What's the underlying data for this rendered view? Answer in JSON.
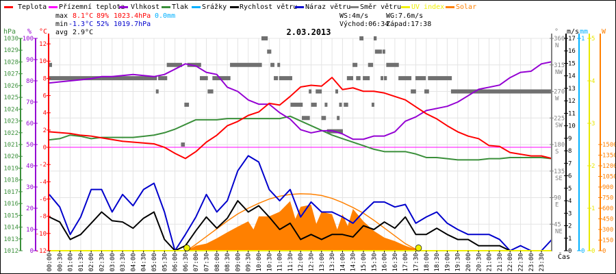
{
  "legend": [
    {
      "label": "Teplota",
      "color": "#ff0000"
    },
    {
      "label": "Přízemní teplota",
      "color": "#ff00ff"
    },
    {
      "label": "Vlhkost",
      "color": "#9400d3"
    },
    {
      "label": "Tlak",
      "color": "#3a8f3a"
    },
    {
      "label": "Srážky",
      "color": "#00b0ff"
    },
    {
      "label": "Rychlost větru",
      "color": "#000000"
    },
    {
      "label": "Náraz větru",
      "color": "#0000cc"
    },
    {
      "label": "Směr větru",
      "color": "#808080"
    },
    {
      "label": "UV index",
      "color": "#f0f000"
    },
    {
      "label": "Solar",
      "color": "#ff8000"
    }
  ],
  "stats": {
    "max_label": "max",
    "max_temp": "8.1°C",
    "max_hum": "89%",
    "max_press": "1023.4hPa",
    "max_rain": "0.0mm",
    "min_label": "min",
    "min_temp": "-1.3°C",
    "min_hum": "52%",
    "min_press": "1019.7hPa",
    "avg_label": "avg",
    "avg_temp": "2.9°C",
    "ws": "WS:4m/s",
    "wg": "WG:7.6m/s",
    "sunrise": "Východ:06:34",
    "sunset": "Západ:17:38"
  },
  "units": {
    "hpa": "hPa",
    "pct": "%",
    "degc": "°C",
    "deg": "°",
    "ms": "m/s",
    "mm": "mm",
    "w": "W",
    "time": "Čas"
  },
  "chart_data": {
    "type": "line",
    "title": "2.03.2013",
    "x_hours_step": 0.5,
    "time_labels": [
      "00:00",
      "00:30",
      "01:00",
      "01:30",
      "02:00",
      "02:30",
      "03:00",
      "03:30",
      "04:00",
      "04:30",
      "05:00",
      "05:30",
      "06:00",
      "06:30",
      "07:00",
      "07:30",
      "08:00",
      "08:30",
      "09:00",
      "09:30",
      "10:00",
      "10:30",
      "11:00",
      "11:30",
      "12:00",
      "12:30",
      "13:00",
      "13:30",
      "14:00",
      "14:30",
      "15:00",
      "15:30",
      "16:00",
      "16:30",
      "17:00",
      "17:30",
      "18:00",
      "18:30",
      "19:00",
      "19:30",
      "20:00",
      "20:30",
      "21:00",
      "21:30",
      "22:00",
      "22:30",
      "23:00",
      "23:30"
    ],
    "axes": {
      "pressure": {
        "unit": "hPa",
        "range": [
          1012,
          1030
        ],
        "ticks": [
          "1012",
          "1013",
          "1014",
          "1015",
          "1016",
          "1017",
          "1018",
          "1019",
          "1020",
          "1021",
          "1022",
          "1023",
          "1024",
          "1025",
          "1026",
          "1027",
          "1028",
          "1029",
          "1030"
        ]
      },
      "humidity": {
        "unit": "%",
        "range": [
          0,
          100
        ],
        "ticks": [
          "0",
          "10",
          "20",
          "30",
          "40",
          "50",
          "60",
          "70",
          "80",
          "90",
          "100"
        ]
      },
      "temperature": {
        "unit": "°C",
        "range": [
          -12,
          12
        ],
        "ticks": [
          "-12",
          "-10",
          "-8",
          "-6",
          "-4",
          "-2",
          "0",
          "2",
          "4",
          "6",
          "8",
          "10",
          "12"
        ]
      },
      "direction": {
        "unit": "°",
        "range": [
          0,
          360
        ],
        "ticks": [
          "45",
          "90",
          "135",
          "180",
          "225",
          "270",
          "315",
          "360"
        ],
        "compass": [
          "NE",
          "E",
          "SE",
          "S",
          "SW",
          "W",
          "NW",
          "N"
        ]
      },
      "wind": {
        "unit": "m/s",
        "range": [
          0,
          17
        ],
        "ticks": [
          "0",
          "1",
          "2",
          "3",
          "4",
          "5",
          "6",
          "7",
          "8",
          "9",
          "10",
          "11",
          "12",
          "13",
          "14",
          "15",
          "16",
          "17"
        ]
      },
      "rain": {
        "unit": "mm",
        "range": [
          0,
          1
        ],
        "ticks": [
          "0",
          "1"
        ]
      },
      "uv": {
        "range": [
          0,
          5
        ],
        "ticks": [
          "0",
          "1",
          "2",
          "3",
          "4",
          "5"
        ]
      },
      "solar": {
        "unit": "W",
        "range": [
          0,
          1500
        ],
        "ticks": [
          "0",
          "150",
          "300",
          "450",
          "600",
          "750",
          "900",
          "1050",
          "1200",
          "1350",
          "1500"
        ]
      }
    },
    "series": [
      {
        "name": "Teplota",
        "axis": "temperature",
        "values": [
          1.8,
          1.7,
          1.6,
          1.4,
          1.3,
          1.1,
          0.9,
          0.7,
          0.6,
          0.5,
          0.4,
          0.0,
          -0.7,
          -1.3,
          -0.5,
          0.6,
          1.4,
          2.5,
          3.0,
          3.7,
          4.1,
          5.1,
          4.9,
          5.9,
          7.0,
          7.2,
          7.1,
          8.1,
          6.7,
          6.9,
          6.5,
          6.5,
          6.3,
          5.9,
          5.5,
          4.7,
          3.9,
          3.3,
          2.5,
          1.8,
          1.3,
          1.0,
          0.2,
          0.1,
          -0.6,
          -0.8,
          -1.0,
          -1.0,
          -1.3
        ]
      },
      {
        "name": "Přízemní teplota",
        "axis": "temperature",
        "values": [
          0,
          0,
          0,
          0,
          0,
          0,
          0,
          0,
          0,
          0,
          0,
          0,
          0,
          0,
          0,
          0,
          0,
          0,
          0,
          0,
          0,
          0,
          0,
          0,
          0,
          0,
          0,
          0,
          0,
          0,
          0,
          0,
          0,
          0,
          0,
          0,
          0,
          0,
          0,
          0,
          0,
          0,
          0,
          0,
          0,
          0,
          0,
          0,
          0
        ]
      },
      {
        "name": "Vlhkost",
        "axis": "humidity",
        "values": [
          79,
          79.5,
          80,
          80.5,
          81,
          82,
          82,
          82.5,
          83,
          82.5,
          82,
          83,
          85.5,
          88,
          87,
          84,
          83,
          77,
          75,
          71,
          69,
          69,
          65,
          62,
          57,
          55.5,
          56.5,
          56.5,
          55,
          52.5,
          52.5,
          54,
          54,
          56,
          61,
          63,
          66,
          67,
          68,
          70,
          73,
          76,
          77,
          78,
          81.5,
          84,
          84.5,
          88,
          89
        ]
      },
      {
        "name": "Tlak",
        "axis": "pressure",
        "values": [
          1021.4,
          1021.5,
          1021.8,
          1021.7,
          1021.5,
          1021.6,
          1021.6,
          1021.6,
          1021.6,
          1021.7,
          1021.8,
          1022.0,
          1022.3,
          1022.7,
          1023.1,
          1023.1,
          1023.1,
          1023.2,
          1023.2,
          1023.2,
          1023.2,
          1023.2,
          1023.2,
          1023.4,
          1023.0,
          1022.6,
          1022.2,
          1021.8,
          1021.5,
          1021.2,
          1020.9,
          1020.6,
          1020.4,
          1020.4,
          1020.4,
          1020.2,
          1019.9,
          1019.9,
          1019.8,
          1019.7,
          1019.7,
          1019.7,
          1019.8,
          1019.8,
          1019.9,
          1019.9,
          1019.9,
          1019.9,
          1019.8
        ]
      },
      {
        "name": "Náraz větru",
        "axis": "wind",
        "values": [
          4.5,
          3.5,
          1.3,
          2.7,
          4.9,
          4.9,
          3.1,
          4.5,
          3.6,
          4.9,
          5.4,
          3.1,
          0,
          1.3,
          2.7,
          4.5,
          3.1,
          4.0,
          6.4,
          7.6,
          7.1,
          4.9,
          4.0,
          4.9,
          2.7,
          3.9,
          3.1,
          3.1,
          2.7,
          2.2,
          3.1,
          3.9,
          3.9,
          3.5,
          3.7,
          2.2,
          2.7,
          3.1,
          2.2,
          1.7,
          1.3,
          1.3,
          1.3,
          0.9,
          0,
          0.4,
          0,
          0,
          0.9
        ]
      },
      {
        "name": "Rychlost větru",
        "axis": "wind",
        "values": [
          2.7,
          2.3,
          0.9,
          1.3,
          2.2,
          3.1,
          2.4,
          2.3,
          1.8,
          2.6,
          3.1,
          0.9,
          0,
          0.4,
          1.6,
          2.7,
          1.8,
          2.6,
          4.0,
          3.1,
          3.6,
          2.7,
          1.7,
          2.2,
          0.9,
          1.3,
          0.9,
          1.3,
          1.3,
          1.1,
          2.0,
          1.7,
          2.3,
          1.8,
          2.7,
          1.3,
          1.3,
          1.8,
          1.3,
          0.9,
          0.9,
          0.4,
          0.4,
          0.4,
          0,
          0,
          0,
          0,
          0
        ]
      }
    ],
    "solar": [
      [
        6.57,
        0
      ],
      [
        7,
        70
      ],
      [
        7.5,
        100
      ],
      [
        8,
        175
      ],
      [
        8.5,
        260
      ],
      [
        9,
        340
      ],
      [
        9.5,
        415
      ],
      [
        9.75,
        300
      ],
      [
        10,
        485
      ],
      [
        10.5,
        485
      ],
      [
        11,
        550
      ],
      [
        11.5,
        700
      ],
      [
        11.75,
        450
      ],
      [
        12,
        620
      ],
      [
        12.5,
        650
      ],
      [
        12.75,
        380
      ],
      [
        13,
        550
      ],
      [
        13.5,
        515
      ],
      [
        13.75,
        300
      ],
      [
        14,
        515
      ],
      [
        14.25,
        350
      ],
      [
        14.5,
        590
      ],
      [
        15,
        415
      ],
      [
        15.5,
        280
      ],
      [
        16,
        185
      ],
      [
        16.5,
        135
      ],
      [
        17,
        70
      ],
      [
        17.5,
        20
      ],
      [
        17.63,
        0
      ]
    ],
    "solar_clear_sky": [
      [
        6.57,
        0
      ],
      [
        7,
        90
      ],
      [
        7.5,
        200
      ],
      [
        8,
        310
      ],
      [
        8.5,
        420
      ],
      [
        9,
        520
      ],
      [
        9.5,
        600
      ],
      [
        10,
        670
      ],
      [
        10.5,
        730
      ],
      [
        11,
        770
      ],
      [
        11.5,
        795
      ],
      [
        12,
        805
      ],
      [
        12.5,
        800
      ],
      [
        13,
        780
      ],
      [
        13.5,
        740
      ],
      [
        14,
        680
      ],
      [
        14.5,
        610
      ],
      [
        15,
        530
      ],
      [
        15.5,
        430
      ],
      [
        16,
        320
      ],
      [
        16.5,
        210
      ],
      [
        17,
        100
      ],
      [
        17.5,
        20
      ],
      [
        17.63,
        0
      ]
    ],
    "uv_points": [
      [
        6.57,
        0
      ],
      [
        17.63,
        0
      ]
    ],
    "direction_segments": [
      [
        0,
        5.14,
        292.5
      ],
      [
        0,
        0.06,
        315
      ],
      [
        5.2,
        5.63,
        292.5
      ],
      [
        5.09,
        5.22,
        270
      ],
      [
        5.61,
        6.34,
        315
      ],
      [
        6.29,
        6.47,
        180
      ],
      [
        6.45,
        6.67,
        247.5
      ],
      [
        6.59,
        7.25,
        315
      ],
      [
        7.19,
        7.57,
        292.5
      ],
      [
        7.56,
        7.83,
        270
      ],
      [
        7.79,
        8.65,
        292.5
      ],
      [
        8.63,
        10.15,
        315
      ],
      [
        10.13,
        10.43,
        360
      ],
      [
        10.4,
        10.6,
        337.5
      ],
      [
        10.56,
        10.75,
        315
      ],
      [
        10.89,
        11.0,
        315
      ],
      [
        10.72,
        10.92,
        292.5
      ],
      [
        10.97,
        11.6,
        292.5
      ],
      [
        11.52,
        12.1,
        247.5
      ],
      [
        12.06,
        12.44,
        225
      ],
      [
        12.39,
        12.52,
        270
      ],
      [
        12.5,
        12.77,
        247.5
      ],
      [
        12.72,
        13.01,
        270
      ],
      [
        12.99,
        13.21,
        225
      ],
      [
        13.15,
        13.26,
        247.5
      ],
      [
        13.26,
        14.02,
        202.5
      ],
      [
        13.66,
        13.78,
        270
      ],
      [
        13.73,
        13.86,
        225
      ],
      [
        13.84,
        13.97,
        247.5
      ],
      [
        14.06,
        14.27,
        247.5
      ],
      [
        14.21,
        14.51,
        292.5
      ],
      [
        14.48,
        14.71,
        315
      ],
      [
        14.65,
        14.86,
        292.5
      ],
      [
        14.81,
        15.0,
        360
      ],
      [
        14.97,
        15.3,
        292.5
      ],
      [
        15.22,
        15.46,
        315
      ],
      [
        15.39,
        15.52,
        247.5
      ],
      [
        15.49,
        15.63,
        360
      ],
      [
        15.55,
        15.88,
        337.5
      ],
      [
        15.82,
        15.95,
        292.5
      ],
      [
        15.91,
        16.02,
        337.5
      ],
      [
        15.98,
        16.12,
        292.5
      ],
      [
        16.09,
        16.69,
        315
      ],
      [
        16.67,
        17.29,
        292.5
      ],
      [
        17.26,
        17.51,
        270
      ],
      [
        17.48,
        17.98,
        292.5
      ],
      [
        17.91,
        18.13,
        270
      ],
      [
        18.08,
        19.22,
        292.5
      ],
      [
        19.18,
        24,
        270
      ]
    ]
  }
}
